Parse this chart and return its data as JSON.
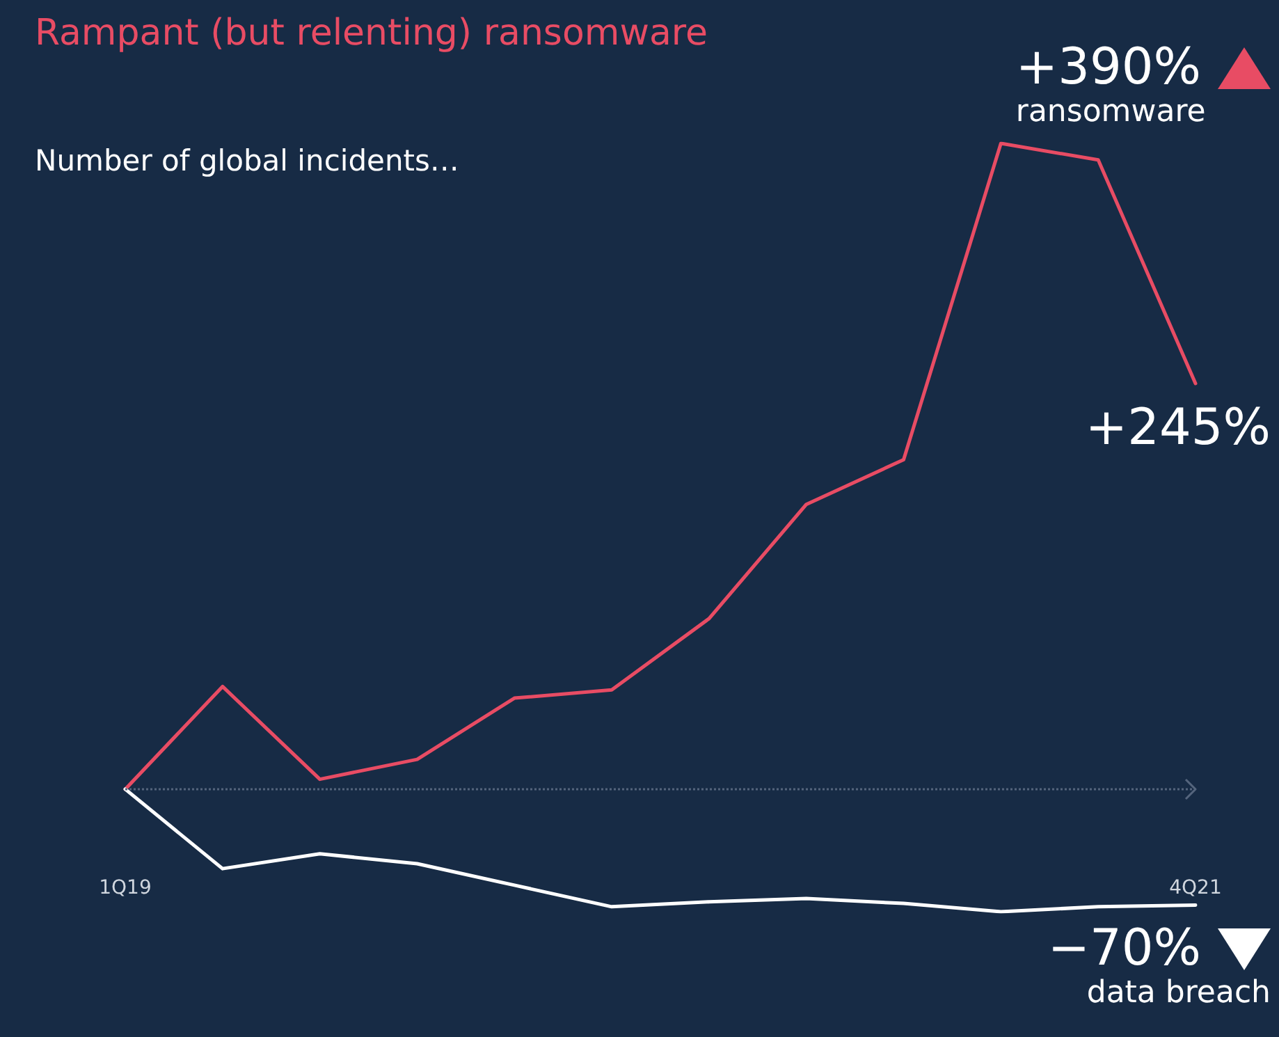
{
  "chart_data": {
    "type": "line",
    "title": "Rampant (but relenting) ransomware",
    "subtitle": "Number of global incidents…",
    "categories": [
      "1Q19",
      null,
      null,
      null,
      null,
      null,
      null,
      null,
      null,
      null,
      null,
      "4Q21"
    ],
    "series": [
      {
        "name": "ransomware",
        "color": "#e84c64",
        "values": [
          0,
          62,
          6,
          18,
          55,
          60,
          103,
          172,
          199,
          390,
          380,
          245
        ],
        "value_labels": [
          null,
          null,
          null,
          null,
          null,
          null,
          null,
          null,
          null,
          "+390%",
          null,
          "+245%"
        ]
      },
      {
        "name": "data breach",
        "color": "#ffffff",
        "values": [
          0,
          -48,
          -39,
          -45,
          -58,
          -71,
          -68,
          -66,
          -69,
          -74,
          -71,
          -70
        ],
        "value_labels": [
          null,
          null,
          null,
          null,
          null,
          null,
          null,
          null,
          null,
          null,
          null,
          "−70%"
        ]
      }
    ],
    "ref_lines": [
      {
        "axis": "y",
        "value": 0,
        "color": "#55657d",
        "line_style": "dotted"
      }
    ],
    "tick_labels": "x",
    "grid": false,
    "marker": "none",
    "line_style": "solid"
  }
}
